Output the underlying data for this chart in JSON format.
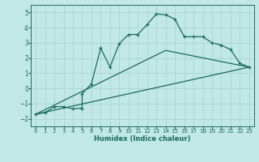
{
  "xlabel": "Humidex (Indice chaleur)",
  "xlim": [
    -0.5,
    23.5
  ],
  "ylim": [
    -2.5,
    5.5
  ],
  "xticks": [
    0,
    1,
    2,
    3,
    4,
    5,
    6,
    7,
    8,
    9,
    10,
    11,
    12,
    13,
    14,
    15,
    16,
    17,
    18,
    19,
    20,
    21,
    22,
    23
  ],
  "yticks": [
    -2,
    -1,
    0,
    1,
    2,
    3,
    4,
    5
  ],
  "bg_color": "#c2e8e5",
  "line_color": "#1a6b5e",
  "grid_color": "#a8d4d0",
  "main_x": [
    0,
    1,
    2,
    3,
    4,
    5,
    5,
    6,
    7,
    8,
    9,
    10,
    11,
    12,
    13,
    14,
    15,
    16,
    17,
    18,
    19,
    20,
    21,
    22,
    23
  ],
  "main_y": [
    -1.7,
    -1.6,
    -1.2,
    -1.2,
    -1.35,
    -1.3,
    -0.35,
    0.3,
    2.65,
    1.4,
    2.95,
    3.55,
    3.55,
    4.2,
    4.9,
    4.85,
    4.55,
    3.4,
    3.4,
    3.4,
    3.0,
    2.85,
    2.55,
    1.65,
    1.4
  ],
  "line2_x": [
    0,
    23
  ],
  "line2_y": [
    -1.7,
    1.4
  ],
  "line3_x": [
    0,
    14,
    23
  ],
  "line3_y": [
    -1.7,
    2.5,
    1.4
  ]
}
